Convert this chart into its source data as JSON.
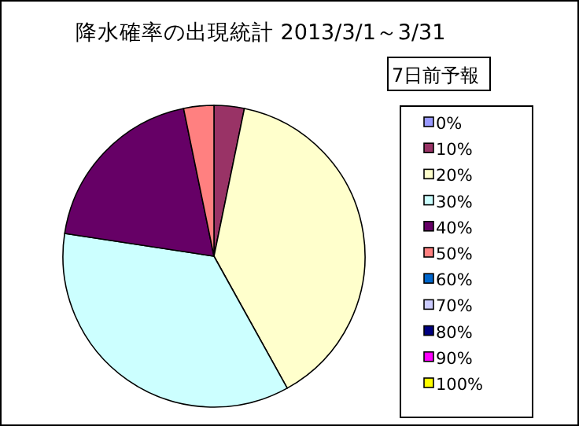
{
  "chart_data": {
    "type": "pie",
    "title": "降水確率の出現統計 2013/3/1～3/31",
    "legend_title": "7日前予報",
    "legend": "right",
    "categories": [
      "0%",
      "10%",
      "20%",
      "30%",
      "40%",
      "50%",
      "60%",
      "70%",
      "80%",
      "90%",
      "100%"
    ],
    "values": [
      0,
      3.23,
      38.71,
      35.48,
      19.35,
      3.23,
      0,
      0,
      0,
      0,
      0
    ],
    "colors": [
      "#9999ff",
      "#993366",
      "#ffffcc",
      "#ccffff",
      "#660066",
      "#ff8080",
      "#0066cc",
      "#ccccff",
      "#000080",
      "#ff00ff",
      "#ffff00"
    ]
  }
}
